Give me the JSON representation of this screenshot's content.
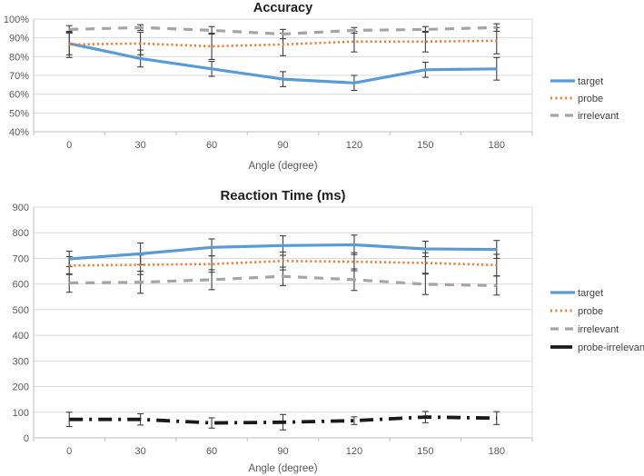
{
  "figure": {
    "background": "#FFFFFF"
  },
  "chart_data": [
    {
      "id": "accuracy",
      "type": "line",
      "title": "Accuracy",
      "xlabel": "Angle (degree)",
      "categories": [
        "0",
        "30",
        "60",
        "90",
        "120",
        "150",
        "180"
      ],
      "y_axis": {
        "min": 40,
        "max": 100,
        "step": 10,
        "format": "percent",
        "tick_labels": [
          "40%",
          "50%",
          "60%",
          "70%",
          "80%",
          "90%",
          "100%"
        ]
      },
      "grid": true,
      "legend_position": "right",
      "legend": [
        "target",
        "probe",
        "irrelevant"
      ],
      "series": [
        {
          "name": "target",
          "color": "#5B9BD5",
          "style": "solid",
          "values": [
            87,
            79,
            73.5,
            68,
            66,
            73,
            73.5
          ],
          "error": [
            6,
            4.5,
            4,
            4,
            4,
            4,
            6
          ]
        },
        {
          "name": "probe",
          "color": "#ED7D31",
          "style": "dotted",
          "values": [
            86.5,
            87,
            85.5,
            86.5,
            88,
            88,
            88.5
          ],
          "error": [
            7,
            6,
            7,
            6,
            5.5,
            5.5,
            7
          ]
        },
        {
          "name": "irrelevant",
          "color": "#A5A5A5",
          "style": "dashed",
          "values": [
            94.5,
            95.5,
            94,
            92,
            94,
            94.5,
            95.5
          ],
          "error": [
            2,
            1.5,
            2,
            2.5,
            1.5,
            1.5,
            2
          ]
        }
      ]
    },
    {
      "id": "rt",
      "type": "line",
      "title": "Reaction Time (ms)",
      "xlabel": "Angle (degree)",
      "categories": [
        "0",
        "30",
        "60",
        "90",
        "120",
        "150",
        "180"
      ],
      "y_axis": {
        "min": 0,
        "max": 900,
        "step": 100,
        "format": "plain",
        "tick_labels": [
          "0",
          "100",
          "200",
          "300",
          "400",
          "500",
          "600",
          "700",
          "800",
          "900"
        ]
      },
      "grid": true,
      "legend_position": "right",
      "legend": [
        "target",
        "probe",
        "irrelevant",
        "probe-irrelevant"
      ],
      "series": [
        {
          "name": "target",
          "color": "#5B9BD5",
          "style": "solid",
          "values": [
            698,
            718,
            743,
            750,
            753,
            737,
            735
          ],
          "error": [
            30,
            42,
            33,
            38,
            38,
            30,
            35
          ]
        },
        {
          "name": "probe",
          "color": "#ED7D31",
          "style": "dotted",
          "values": [
            672,
            675,
            678,
            690,
            687,
            682,
            674
          ],
          "error": [
            35,
            38,
            32,
            35,
            35,
            40,
            42
          ]
        },
        {
          "name": "irrelevant",
          "color": "#A5A5A5",
          "style": "dashed",
          "values": [
            604,
            607,
            617,
            630,
            617,
            599,
            594
          ],
          "error": [
            36,
            43,
            39,
            36,
            42,
            40,
            37
          ]
        },
        {
          "name": "probe-irrelevant",
          "color": "#1A1A1A",
          "style": "dashdot",
          "values": [
            72,
            72,
            58,
            61,
            67,
            81,
            77
          ],
          "error": [
            28,
            22,
            20,
            30,
            15,
            22,
            25
          ]
        }
      ]
    }
  ],
  "style_colors": {
    "gridline": "#D9D9D9",
    "axis": "#BFBFBF",
    "error_bar": "#3F3F3F",
    "tick_text": "#595959",
    "title_text": "#1F1F1F",
    "legend_text": "#404040"
  }
}
